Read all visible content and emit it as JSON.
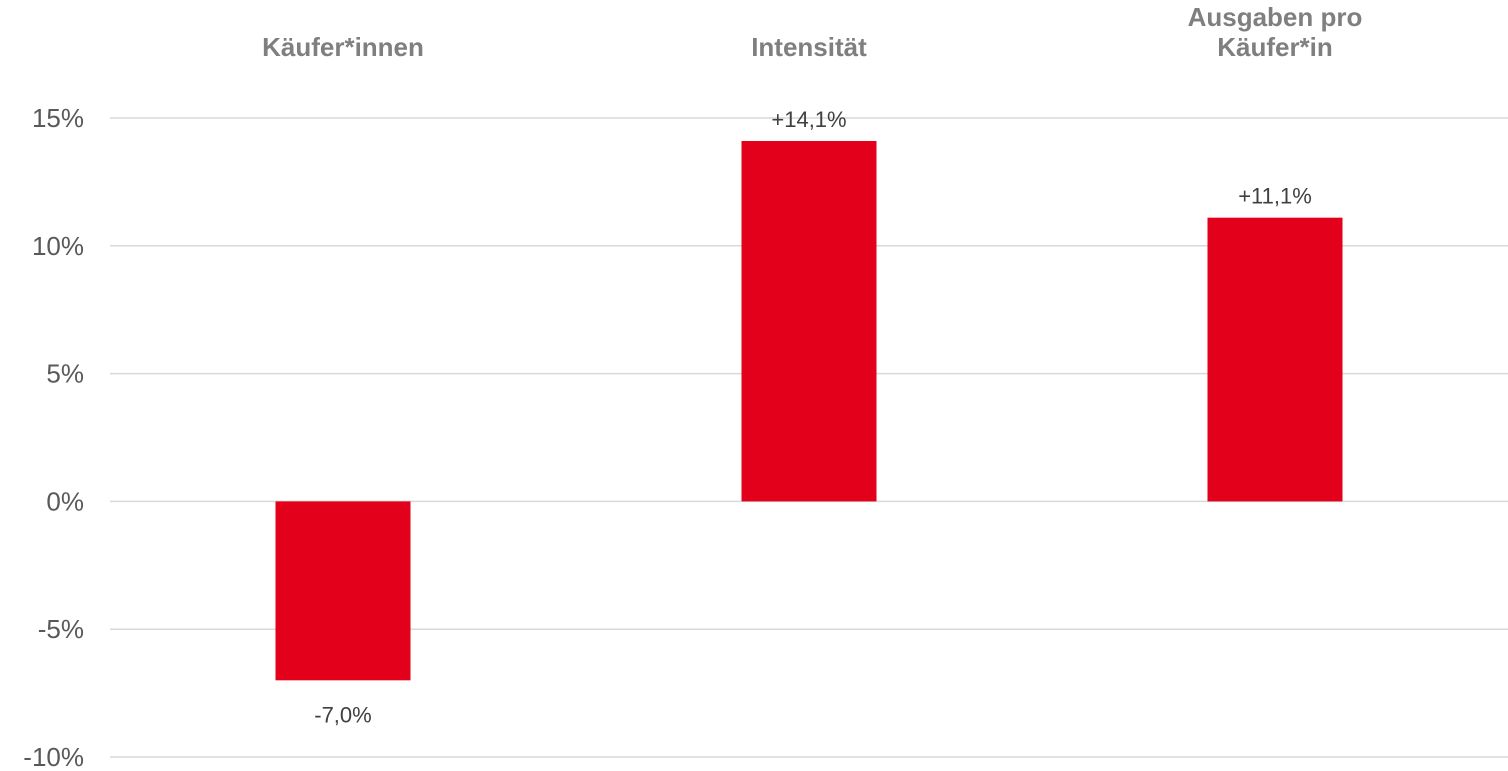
{
  "chart_data": {
    "type": "bar",
    "categories": [
      [
        "Käufer*innen"
      ],
      [
        "Intensität"
      ],
      [
        "Ausgaben pro",
        "Käufer*in"
      ]
    ],
    "values": [
      -7.0,
      14.1,
      11.1
    ],
    "data_labels": [
      "-7,0%",
      "+14,1%",
      "+11,1%"
    ],
    "ylim": [
      -10,
      15
    ],
    "yticks": [
      15,
      10,
      5,
      0,
      -5,
      -10
    ],
    "ytick_labels": [
      "15%",
      "10%",
      "5%",
      "0%",
      "-5%",
      "-10%"
    ],
    "grid": true,
    "legend": "none",
    "bar_color": "#e2001a",
    "category_color": "#7f7f7f"
  }
}
